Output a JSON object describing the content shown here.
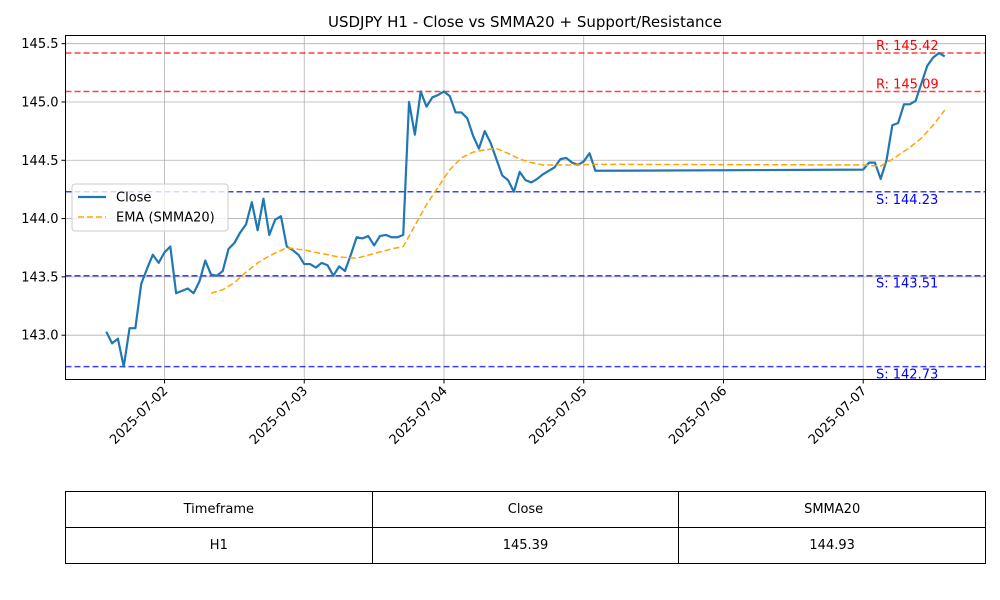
{
  "chart_data": {
    "type": "line",
    "title": "USDJPY H1 - Close vs SMMA20 + Support/Resistance",
    "ylim": [
      142.62,
      145.57
    ],
    "xlim": [
      "2025-07-01 07:00",
      "2025-07-07 21:00"
    ],
    "y_ticks": [
      143.0,
      143.5,
      144.0,
      144.5,
      145.0,
      145.5
    ],
    "y_tick_labels": [
      "143.0",
      "143.5",
      "144.0",
      "144.5",
      "145.0",
      "145.5"
    ],
    "x_ticks": [
      "2025-07-02 00:00",
      "2025-07-03 00:00",
      "2025-07-04 00:00",
      "2025-07-05 00:00",
      "2025-07-06 00:00",
      "2025-07-07 00:00"
    ],
    "x_tick_labels": [
      "2025-07-02",
      "2025-07-03",
      "2025-07-04",
      "2025-07-05",
      "2025-07-06",
      "2025-07-07"
    ],
    "grid": true,
    "legend_position": "left",
    "colors": {
      "close": "#1f77b4",
      "smma": "#ffa500",
      "resistance": "#ff0000",
      "support": "#0000ff"
    },
    "series": [
      {
        "name": "Close",
        "style": "solid",
        "points": [
          [
            "2025-07-01 14:00",
            143.03
          ],
          [
            "2025-07-01 15:00",
            142.93
          ],
          [
            "2025-07-01 16:00",
            142.97
          ],
          [
            "2025-07-01 17:00",
            142.73
          ],
          [
            "2025-07-01 18:00",
            143.06
          ],
          [
            "2025-07-01 19:00",
            143.06
          ],
          [
            "2025-07-01 20:00",
            143.44
          ],
          [
            "2025-07-01 21:00",
            143.57
          ],
          [
            "2025-07-01 22:00",
            143.69
          ],
          [
            "2025-07-01 23:00",
            143.62
          ],
          [
            "2025-07-02 00:00",
            143.71
          ],
          [
            "2025-07-02 01:00",
            143.76
          ],
          [
            "2025-07-02 02:00",
            143.36
          ],
          [
            "2025-07-02 03:00",
            143.38
          ],
          [
            "2025-07-02 04:00",
            143.4
          ],
          [
            "2025-07-02 05:00",
            143.36
          ],
          [
            "2025-07-02 06:00",
            143.46
          ],
          [
            "2025-07-02 07:00",
            143.64
          ],
          [
            "2025-07-02 08:00",
            143.52
          ],
          [
            "2025-07-02 09:00",
            143.51
          ],
          [
            "2025-07-02 10:00",
            143.55
          ],
          [
            "2025-07-02 11:00",
            143.74
          ],
          [
            "2025-07-02 12:00",
            143.79
          ],
          [
            "2025-07-02 13:00",
            143.88
          ],
          [
            "2025-07-02 14:00",
            143.95
          ],
          [
            "2025-07-02 15:00",
            144.14
          ],
          [
            "2025-07-02 16:00",
            143.9
          ],
          [
            "2025-07-02 17:00",
            144.17
          ],
          [
            "2025-07-02 18:00",
            143.86
          ],
          [
            "2025-07-02 19:00",
            143.99
          ],
          [
            "2025-07-02 20:00",
            144.02
          ],
          [
            "2025-07-02 21:00",
            143.76
          ],
          [
            "2025-07-02 22:00",
            143.73
          ],
          [
            "2025-07-02 23:00",
            143.69
          ],
          [
            "2025-07-03 00:00",
            143.61
          ],
          [
            "2025-07-03 01:00",
            143.61
          ],
          [
            "2025-07-03 02:00",
            143.58
          ],
          [
            "2025-07-03 03:00",
            143.62
          ],
          [
            "2025-07-03 04:00",
            143.6
          ],
          [
            "2025-07-03 05:00",
            143.51
          ],
          [
            "2025-07-03 06:00",
            143.59
          ],
          [
            "2025-07-03 07:00",
            143.55
          ],
          [
            "2025-07-03 08:00",
            143.69
          ],
          [
            "2025-07-03 09:00",
            143.84
          ],
          [
            "2025-07-03 10:00",
            143.83
          ],
          [
            "2025-07-03 11:00",
            143.85
          ],
          [
            "2025-07-03 12:00",
            143.77
          ],
          [
            "2025-07-03 13:00",
            143.85
          ],
          [
            "2025-07-03 14:00",
            143.86
          ],
          [
            "2025-07-03 15:00",
            143.84
          ],
          [
            "2025-07-03 16:00",
            143.84
          ],
          [
            "2025-07-03 17:00",
            143.86
          ],
          [
            "2025-07-03 18:00",
            145.0
          ],
          [
            "2025-07-03 19:00",
            144.72
          ],
          [
            "2025-07-03 20:00",
            145.09
          ],
          [
            "2025-07-03 21:00",
            144.96
          ],
          [
            "2025-07-03 22:00",
            145.04
          ],
          [
            "2025-07-03 23:00",
            145.06
          ],
          [
            "2025-07-04 00:00",
            145.09
          ],
          [
            "2025-07-04 01:00",
            145.05
          ],
          [
            "2025-07-04 02:00",
            144.91
          ],
          [
            "2025-07-04 03:00",
            144.91
          ],
          [
            "2025-07-04 04:00",
            144.86
          ],
          [
            "2025-07-04 05:00",
            144.71
          ],
          [
            "2025-07-04 06:00",
            144.6
          ],
          [
            "2025-07-04 07:00",
            144.75
          ],
          [
            "2025-07-04 08:00",
            144.65
          ],
          [
            "2025-07-04 09:00",
            144.51
          ],
          [
            "2025-07-04 10:00",
            144.37
          ],
          [
            "2025-07-04 11:00",
            144.33
          ],
          [
            "2025-07-04 12:00",
            144.23
          ],
          [
            "2025-07-04 13:00",
            144.4
          ],
          [
            "2025-07-04 14:00",
            144.33
          ],
          [
            "2025-07-04 15:00",
            144.31
          ],
          [
            "2025-07-04 16:00",
            144.34
          ],
          [
            "2025-07-04 17:00",
            144.38
          ],
          [
            "2025-07-04 18:00",
            144.41
          ],
          [
            "2025-07-04 19:00",
            144.44
          ],
          [
            "2025-07-04 20:00",
            144.51
          ],
          [
            "2025-07-04 21:00",
            144.52
          ],
          [
            "2025-07-04 22:00",
            144.48
          ],
          [
            "2025-07-04 23:00",
            144.46
          ],
          [
            "2025-07-05 00:00",
            144.49
          ],
          [
            "2025-07-05 01:00",
            144.56
          ],
          [
            "2025-07-05 02:00",
            144.41
          ],
          [
            "2025-07-07 00:00",
            144.42
          ],
          [
            "2025-07-07 01:00",
            144.48
          ],
          [
            "2025-07-07 02:00",
            144.48
          ],
          [
            "2025-07-07 03:00",
            144.34
          ],
          [
            "2025-07-07 04:00",
            144.5
          ],
          [
            "2025-07-07 05:00",
            144.8
          ],
          [
            "2025-07-07 06:00",
            144.82
          ],
          [
            "2025-07-07 07:00",
            144.98
          ],
          [
            "2025-07-07 08:00",
            144.98
          ],
          [
            "2025-07-07 09:00",
            145.01
          ],
          [
            "2025-07-07 10:00",
            145.16
          ],
          [
            "2025-07-07 11:00",
            145.31
          ],
          [
            "2025-07-07 12:00",
            145.38
          ],
          [
            "2025-07-07 13:00",
            145.42
          ],
          [
            "2025-07-07 14:00",
            145.39
          ]
        ]
      },
      {
        "name": "EMA (SMMA20)",
        "style": "dashed",
        "points": [
          [
            "2025-07-02 08:00",
            143.36
          ],
          [
            "2025-07-02 10:00",
            143.39
          ],
          [
            "2025-07-02 12:00",
            143.45
          ],
          [
            "2025-07-02 14:00",
            143.54
          ],
          [
            "2025-07-02 16:00",
            143.62
          ],
          [
            "2025-07-02 18:00",
            143.68
          ],
          [
            "2025-07-02 21:00",
            143.75
          ],
          [
            "2025-07-03 00:00",
            143.73
          ],
          [
            "2025-07-03 03:00",
            143.7
          ],
          [
            "2025-07-03 06:00",
            143.67
          ],
          [
            "2025-07-03 09:00",
            143.66
          ],
          [
            "2025-07-03 12:00",
            143.7
          ],
          [
            "2025-07-03 15:00",
            143.74
          ],
          [
            "2025-07-03 17:00",
            143.76
          ],
          [
            "2025-07-03 19:00",
            143.94
          ],
          [
            "2025-07-03 21:00",
            144.12
          ],
          [
            "2025-07-03 23:00",
            144.27
          ],
          [
            "2025-07-04 01:00",
            144.42
          ],
          [
            "2025-07-04 03:00",
            144.52
          ],
          [
            "2025-07-04 05:00",
            144.57
          ],
          [
            "2025-07-04 07:00",
            144.59
          ],
          [
            "2025-07-04 09:00",
            144.6
          ],
          [
            "2025-07-04 11:00",
            144.56
          ],
          [
            "2025-07-04 13:00",
            144.51
          ],
          [
            "2025-07-04 15:00",
            144.48
          ],
          [
            "2025-07-04 17:00",
            144.46
          ],
          [
            "2025-07-04 20:00",
            144.46
          ],
          [
            "2025-07-04 23:00",
            144.46
          ],
          [
            "2025-07-05 02:00",
            144.465
          ],
          [
            "2025-07-07 00:00",
            144.46
          ],
          [
            "2025-07-07 03:00",
            144.45
          ],
          [
            "2025-07-07 05:00",
            144.51
          ],
          [
            "2025-07-07 08:00",
            144.61
          ],
          [
            "2025-07-07 10:00",
            144.69
          ],
          [
            "2025-07-07 12:00",
            144.8
          ],
          [
            "2025-07-07 14:00",
            144.93
          ]
        ]
      }
    ],
    "levels": [
      {
        "kind": "resistance",
        "value": 145.42,
        "label": "R: 145.42"
      },
      {
        "kind": "resistance",
        "value": 145.09,
        "label": "R: 145.09"
      },
      {
        "kind": "support",
        "value": 144.23,
        "label": "S: 144.23"
      },
      {
        "kind": "support",
        "value": 143.51,
        "label": "S: 143.51"
      },
      {
        "kind": "support",
        "value": 142.73,
        "label": "S: 142.73"
      }
    ]
  },
  "table": {
    "headers": [
      "Timeframe",
      "Close",
      "SMMA20"
    ],
    "rows": [
      [
        "H1",
        "145.39",
        "144.93"
      ]
    ]
  }
}
